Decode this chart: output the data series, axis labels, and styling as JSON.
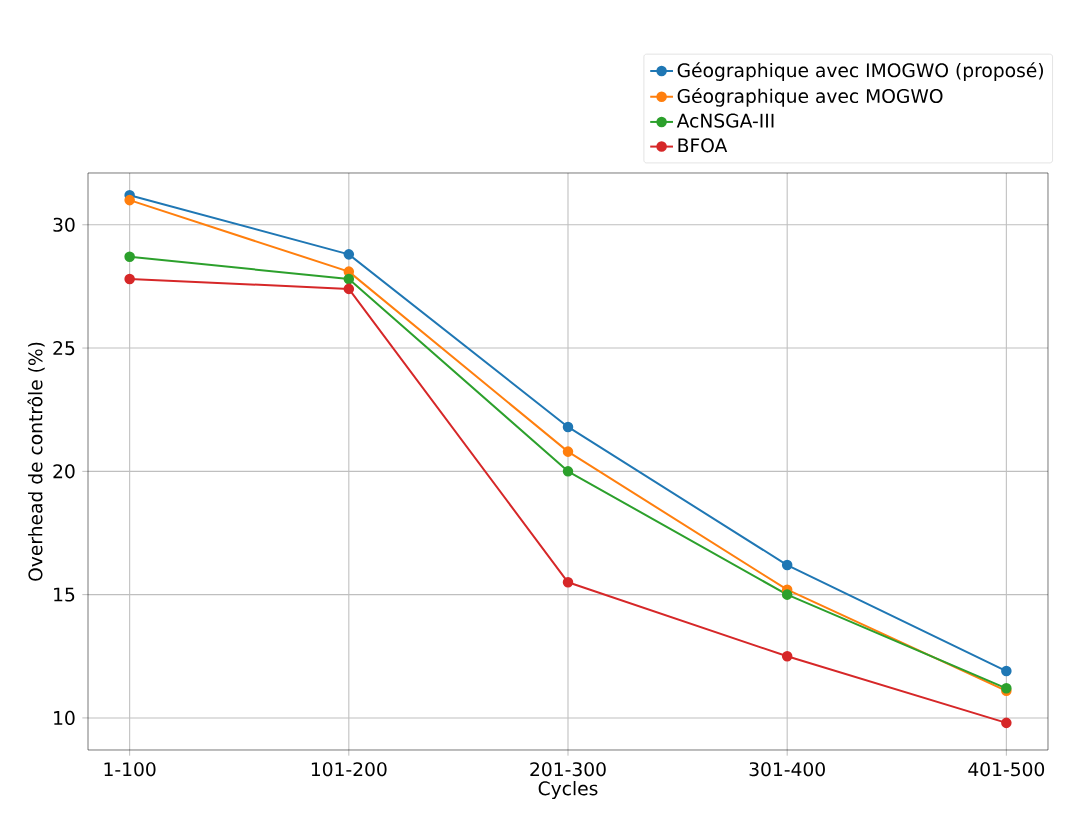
{
  "chart_data": {
    "type": "line",
    "xlabel": "Cycles",
    "ylabel": "Overhead de contrôle (%)",
    "categories": [
      "1-100",
      "101-200",
      "201-300",
      "301-400",
      "401-500"
    ],
    "series": [
      {
        "name": "Géographique avec IMOGWO (proposé)",
        "color": "#1f77b4",
        "values": [
          31.2,
          28.8,
          21.8,
          16.2,
          11.9
        ]
      },
      {
        "name": "Géographique avec MOGWO",
        "color": "#ff7f0e",
        "values": [
          31.0,
          28.1,
          20.8,
          15.2,
          11.1
        ]
      },
      {
        "name": "AcNSGA-III",
        "color": "#2ca02c",
        "values": [
          28.7,
          27.8,
          20.0,
          15.0,
          11.2
        ]
      },
      {
        "name": "BFOA",
        "color": "#d62728",
        "values": [
          27.8,
          27.4,
          15.5,
          12.5,
          9.8
        ]
      }
    ],
    "ylim": [
      8.7,
      32.1
    ],
    "yticks": [
      10,
      15,
      20,
      25,
      30
    ],
    "grid": true,
    "legend": "top right",
    "marker": "circle",
    "line_style": "solid"
  }
}
